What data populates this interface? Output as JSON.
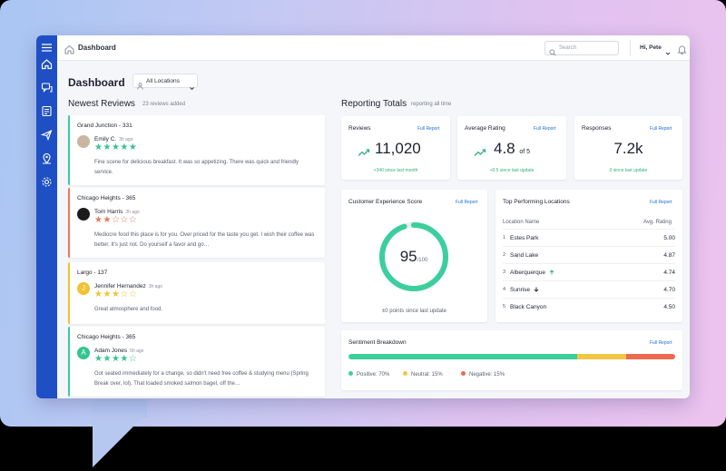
{
  "topbar": {
    "breadcrumb": "Dashboard",
    "search_placeholder": "Search",
    "greeting": "Hi, Pete"
  },
  "page": {
    "title": "Dashboard",
    "location_filter": "All Locations"
  },
  "sidebar": {
    "icons": [
      "menu-icon",
      "home-icon",
      "reviews-icon",
      "reports-icon",
      "send-icon",
      "location-icon",
      "settings-icon"
    ]
  },
  "newest_reviews": {
    "heading": "Newest Reviews",
    "subtitle": "23 reviews added",
    "items": [
      {
        "location": "Grand Junction - 331",
        "name": "Emily C.",
        "time": "3h ago",
        "rating": 5,
        "avatar_letter": "",
        "avatar_color": "#c9b7a2",
        "accent": "#3cc8a0",
        "text": "Fine scene for delicious breakfast. It was so appetizing. There was quick and friendly service."
      },
      {
        "location": "Chicago Heights - 365",
        "name": "Tom Harris",
        "time": "3h ago",
        "rating": 2,
        "avatar_letter": "",
        "avatar_color": "#1b1b1b",
        "accent": "#e07a5f",
        "text": "Mediocre food this place is for you. Over priced for the taste you get. I wish their coffee was better. It's just not. Do yourself a favor and go…"
      },
      {
        "location": "Largo - 137",
        "name": "Jennifer Hernandez",
        "time": "3h ago",
        "rating": 3,
        "avatar_letter": "J",
        "avatar_color": "#f2c230",
        "accent": "#f2c230",
        "text": "Great atmosphere and food."
      },
      {
        "location": "Chicago Heights - 365",
        "name": "Adam Jones",
        "time": "5h ago",
        "rating": 4,
        "avatar_letter": "A",
        "avatar_color": "#35c48f",
        "accent": "#3cc8a0",
        "text": "Got seated immediately for a change, so didn't need free coffee & studying menu (Spring Break over, lol). That loaded smoked salmon bagel, off the…"
      }
    ]
  },
  "reporting": {
    "heading": "Reporting Totals",
    "subtitle": "reporting all time",
    "full_report": "Full Report",
    "reviews": {
      "title": "Reviews",
      "value": "11,020",
      "change": "+340 since last month"
    },
    "rating": {
      "title": "Average Rating",
      "value": "4.8",
      "of": "of 5",
      "change": "+0.5 since last update"
    },
    "responses": {
      "title": "Responses",
      "value": "7.2k",
      "change": "0 since last update"
    },
    "cx": {
      "title": "Customer Experience Score",
      "value": "95",
      "suffix": "/100",
      "score": 95,
      "change": "±0 points since last update"
    },
    "top_locations": {
      "title": "Top Performing Locations",
      "col_location": "Location Name",
      "col_rating": "Avg. Rating",
      "rows": [
        {
          "rank": "1",
          "name": "Estes Park",
          "value": "5.00",
          "trend": ""
        },
        {
          "rank": "2",
          "name": "Sand Lake",
          "value": "4.87",
          "trend": ""
        },
        {
          "rank": "3",
          "name": "Alberquerque",
          "value": "4.74",
          "trend": "up"
        },
        {
          "rank": "4",
          "name": "Sunrise",
          "value": "4.70",
          "trend": "down"
        },
        {
          "rank": "5",
          "name": "Black Canyon",
          "value": "4.50",
          "trend": ""
        }
      ]
    },
    "sentiment": {
      "title": "Sentiment Breakdown",
      "segments": [
        {
          "label": "Positive: 70%",
          "value": 70,
          "color": "#3ccf9c"
        },
        {
          "label": "Neutral: 15%",
          "value": 15,
          "color": "#f3c744"
        },
        {
          "label": "Negative: 15%",
          "value": 15,
          "color": "#ec6a4e"
        }
      ]
    }
  },
  "colors": {
    "sidebar": "#1f4fc4",
    "link": "#1f6fd9",
    "positive": "#2fb47f",
    "star": "#35c48f"
  }
}
